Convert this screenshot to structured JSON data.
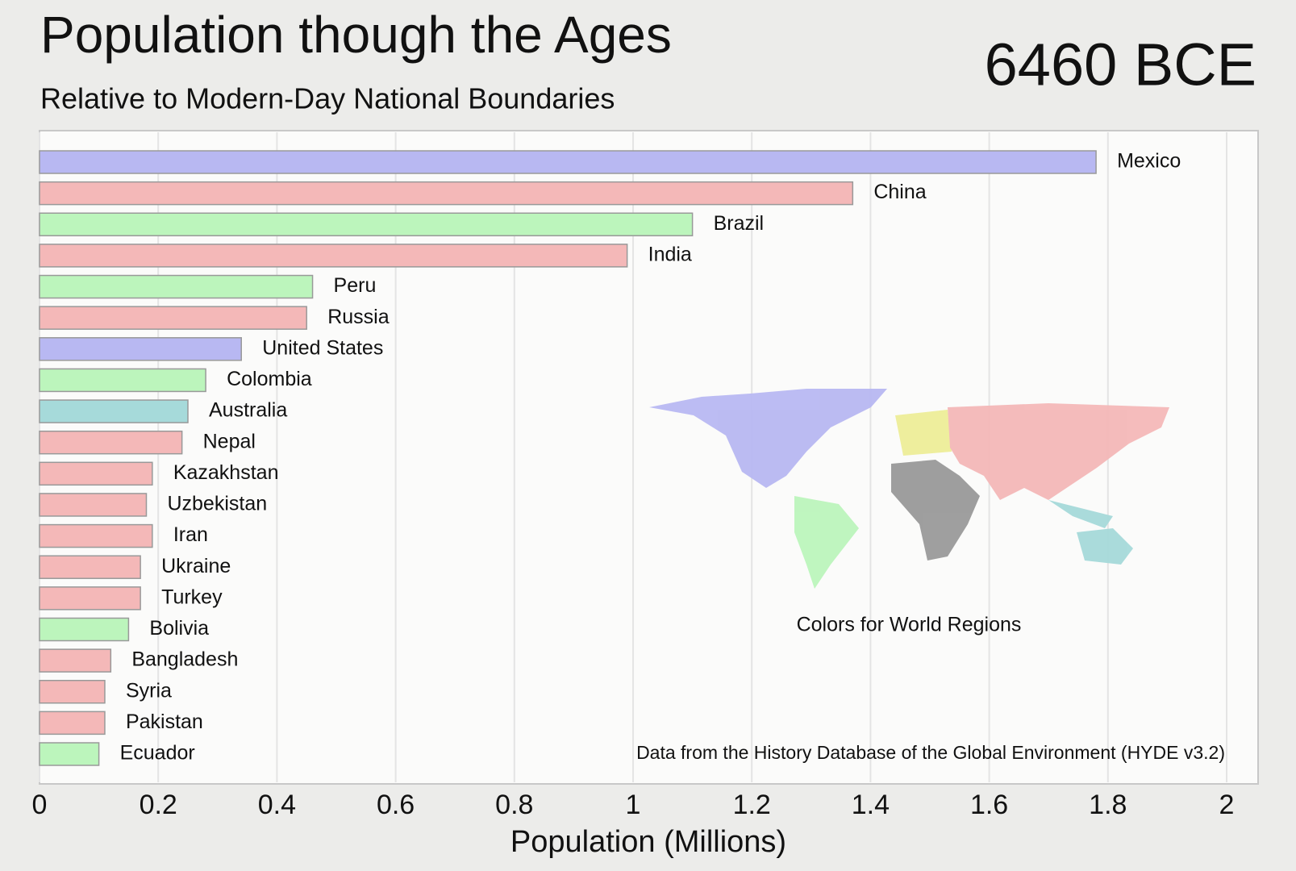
{
  "chart_data": {
    "type": "barh",
    "title": "Population though the Ages",
    "subtitle": "Relative to Modern-Day National Boundaries",
    "period": "6460 BCE",
    "map_caption": "Colors for World Regions",
    "source": "Data from the History Database of the Global Environment (HYDE v3.2)",
    "xlabel": "Population (Millions)",
    "categories": [
      "Mexico",
      "China",
      "Brazil",
      "India",
      "Peru",
      "Russia",
      "United States",
      "Colombia",
      "Australia",
      "Nepal",
      "Kazakhstan",
      "Uzbekistan",
      "Iran",
      "Ukraine",
      "Turkey",
      "Bolivia",
      "Bangladesh",
      "Syria",
      "Pakistan",
      "Ecuador"
    ],
    "values": [
      1.78,
      1.37,
      1.1,
      0.99,
      0.46,
      0.45,
      0.34,
      0.28,
      0.25,
      0.24,
      0.19,
      0.18,
      0.19,
      0.17,
      0.17,
      0.15,
      0.12,
      0.11,
      0.11,
      0.1
    ],
    "colors": [
      "#b8b8f2",
      "#f4b8b8",
      "#bcf5bc",
      "#f4b8b8",
      "#bcf5bc",
      "#f4b8b8",
      "#b8b8f2",
      "#bcf5bc",
      "#a6dada",
      "#f4b8b8",
      "#f4b8b8",
      "#f4b8b8",
      "#f4b8b8",
      "#f4b8b8",
      "#f4b8b8",
      "#bcf5bc",
      "#f4b8b8",
      "#f4b8b8",
      "#f4b8b8",
      "#bcf5bc"
    ],
    "xlim": [
      0,
      2
    ],
    "xticks": [
      0,
      0.2,
      0.4,
      0.6,
      0.8,
      1,
      1.2,
      1.4,
      1.6,
      1.8,
      2
    ],
    "grid": true
  }
}
